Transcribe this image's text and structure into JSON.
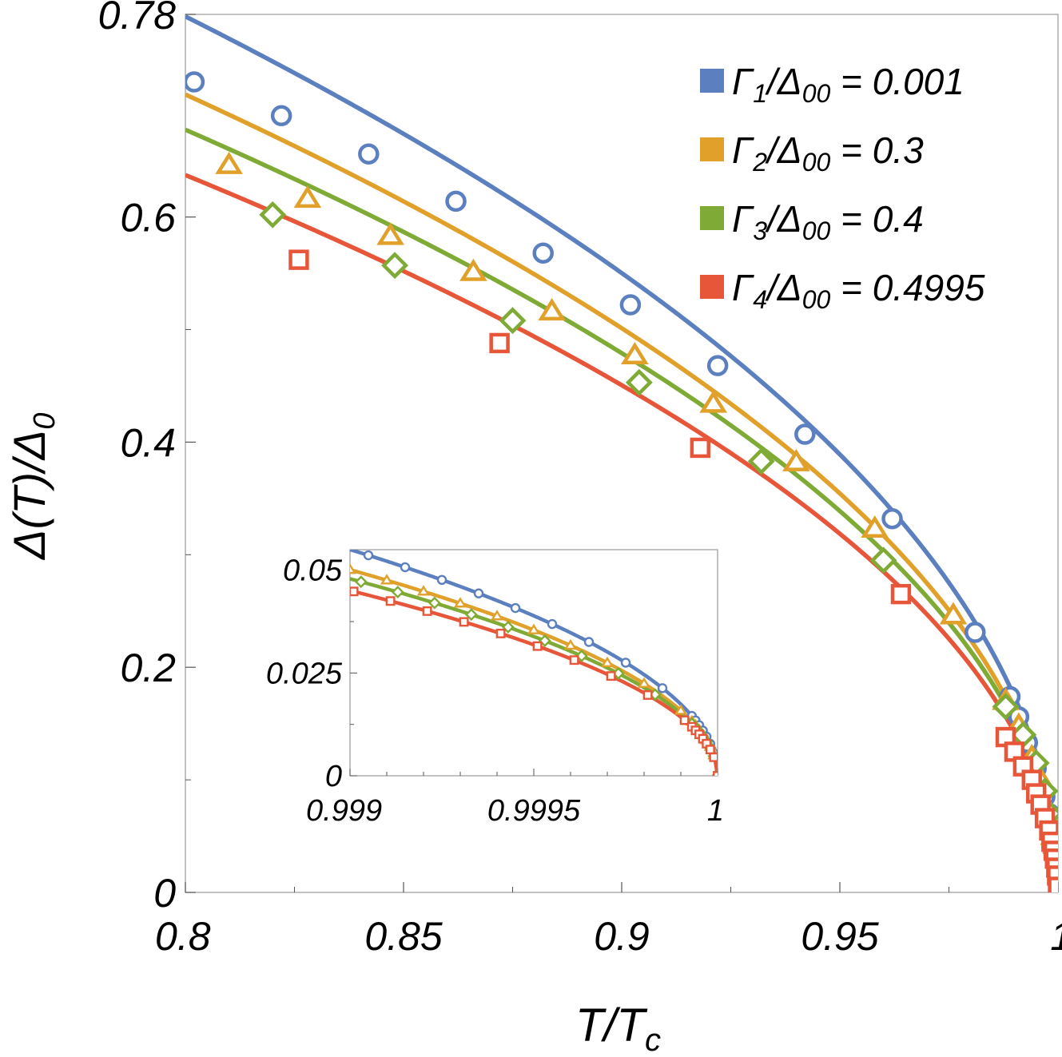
{
  "chart_data": [
    {
      "type": "line",
      "xlabel": "T/T",
      "xlabel_sub": "c",
      "ylabel": "Δ(T)/Δ",
      "ylabel_sub": "0",
      "xlim": [
        0.8,
        1.0
      ],
      "ylim": [
        0,
        0.78
      ],
      "xticks": [
        "0.8",
        "0.85",
        "0.9",
        "0.95",
        "1"
      ],
      "xtick_values": [
        0.8,
        0.85,
        0.9,
        0.95,
        1.0
      ],
      "yticks": [
        "0",
        "0.2",
        "0.4",
        "0.6",
        "0.78"
      ],
      "ytick_values": [
        0,
        0.2,
        0.4,
        0.6,
        0.78
      ],
      "legend_position": "top-right",
      "series": [
        {
          "name": "Γ1/Δ00 = 0.001",
          "legend_main": "Γ",
          "legend_sub": "1",
          "legend_mid": "/Δ",
          "legend_sub2": "00",
          "legend_value": " = 0.001",
          "color": "#5b7fbf",
          "marker": "circle",
          "curve_coef": 1.74,
          "points": [
            [
              0.802,
              0.72
            ],
            [
              0.822,
              0.69
            ],
            [
              0.842,
              0.656
            ],
            [
              0.862,
              0.614
            ],
            [
              0.882,
              0.568
            ],
            [
              0.902,
              0.522
            ],
            [
              0.922,
              0.468
            ],
            [
              0.942,
              0.407
            ],
            [
              0.962,
              0.332
            ],
            [
              0.981,
              0.231
            ],
            [
              0.989,
              0.174
            ],
            [
              0.991,
              0.156
            ],
            [
              0.993,
              0.133
            ],
            [
              0.995,
              0.11
            ],
            [
              0.997,
              0.085
            ],
            [
              0.998,
              0.07
            ],
            [
              0.999,
              0.05
            ],
            [
              0.9995,
              0.035
            ]
          ]
        },
        {
          "name": "Γ2/Δ00 = 0.3",
          "legend_main": "Γ",
          "legend_sub": "2",
          "legend_mid": "/Δ",
          "legend_sub2": "00",
          "legend_value": " = 0.3",
          "color": "#e0a02a",
          "marker": "triangle",
          "curve_coef": 1.585,
          "points": [
            [
              0.81,
              0.646
            ],
            [
              0.828,
              0.616
            ],
            [
              0.847,
              0.583
            ],
            [
              0.866,
              0.551
            ],
            [
              0.884,
              0.516
            ],
            [
              0.903,
              0.477
            ],
            [
              0.921,
              0.434
            ],
            [
              0.94,
              0.382
            ],
            [
              0.958,
              0.323
            ],
            [
              0.976,
              0.246
            ],
            [
              0.988,
              0.17
            ],
            [
              0.991,
              0.148
            ],
            [
              0.994,
              0.12
            ],
            [
              0.996,
              0.1
            ],
            [
              0.998,
              0.07
            ],
            [
              0.999,
              0.05
            ]
          ]
        },
        {
          "name": "Γ3/Δ00 = 0.4",
          "legend_main": "Γ",
          "legend_sub": "3",
          "legend_mid": "/Δ",
          "legend_sub2": "00",
          "legend_value": " = 0.4",
          "color": "#7faa35",
          "marker": "diamond",
          "curve_coef": 1.515,
          "points": [
            [
              0.82,
              0.602
            ],
            [
              0.848,
              0.557
            ],
            [
              0.875,
              0.508
            ],
            [
              0.904,
              0.453
            ],
            [
              0.932,
              0.383
            ],
            [
              0.96,
              0.295
            ],
            [
              0.988,
              0.165
            ],
            [
              0.992,
              0.14
            ],
            [
              0.995,
              0.115
            ],
            [
              0.997,
              0.09
            ],
            [
              0.998,
              0.07
            ],
            [
              0.999,
              0.05
            ],
            [
              0.9995,
              0.035
            ]
          ]
        },
        {
          "name": "Γ4/Δ00 = 0.4995",
          "legend_main": "Γ",
          "legend_sub": "4",
          "legend_mid": "/Δ",
          "legend_sub2": "00",
          "legend_value": " = 0.4995",
          "color": "#e8563a",
          "marker": "square",
          "curve_coef": 1.425,
          "points": [
            [
              0.826,
              0.562
            ],
            [
              0.872,
              0.488
            ],
            [
              0.918,
              0.395
            ],
            [
              0.964,
              0.265
            ],
            [
              0.988,
              0.138
            ],
            [
              0.99,
              0.125
            ],
            [
              0.992,
              0.112
            ],
            [
              0.994,
              0.1
            ],
            [
              0.995,
              0.088
            ],
            [
              0.996,
              0.078
            ],
            [
              0.997,
              0.066
            ],
            [
              0.998,
              0.055
            ],
            [
              0.9985,
              0.045
            ],
            [
              0.999,
              0.037
            ],
            [
              0.9993,
              0.03
            ],
            [
              0.9996,
              0.022
            ],
            [
              0.9998,
              0.015
            ],
            [
              1.0,
              0.005
            ]
          ]
        }
      ]
    },
    {
      "type": "line",
      "inset": true,
      "xlim": [
        0.999,
        1.0
      ],
      "ylim": [
        0,
        0.055
      ],
      "xticks": [
        "0.999",
        "0.9995",
        "1"
      ],
      "xtick_values": [
        0.999,
        0.9995,
        1.0
      ],
      "yticks": [
        "0",
        "0.025",
        "0.05"
      ],
      "ytick_values": [
        0,
        0.025,
        0.05
      ],
      "series": [
        {
          "name": "Γ1/Δ00 = 0.001",
          "color": "#5b7fbf",
          "marker": "circle",
          "curve_coef": 1.74
        },
        {
          "name": "Γ2/Δ00 = 0.3",
          "color": "#e0a02a",
          "marker": "triangle",
          "curve_coef": 1.585
        },
        {
          "name": "Γ3/Δ00 = 0.4",
          "color": "#7faa35",
          "marker": "diamond",
          "curve_coef": 1.515
        },
        {
          "name": "Γ4/Δ00 = 0.4995",
          "color": "#e8563a",
          "marker": "square",
          "curve_coef": 1.425
        }
      ]
    }
  ]
}
